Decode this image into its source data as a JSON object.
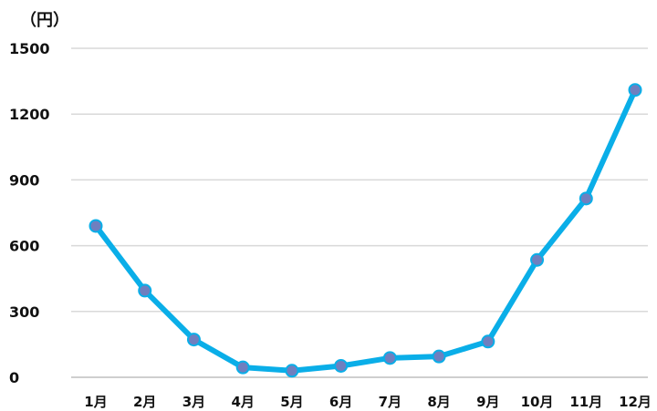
{
  "chart_data": {
    "type": "line",
    "unit_label": "（円）",
    "categories": [
      "1月",
      "2月",
      "3月",
      "4月",
      "5月",
      "6月",
      "7月",
      "8月",
      "9月",
      "10月",
      "11月",
      "12月"
    ],
    "series": [
      {
        "values": [
          690,
          395,
          172,
          45,
          30,
          52,
          88,
          95,
          163,
          535,
          815,
          1310
        ]
      }
    ],
    "ylim": [
      0,
      1500
    ],
    "yticks": [
      "0",
      "300",
      "600",
      "900",
      "1200",
      "1500"
    ],
    "grid": true,
    "legend": "none",
    "line_color": "#0aaee8",
    "marker_color": "#6f7fbf"
  }
}
